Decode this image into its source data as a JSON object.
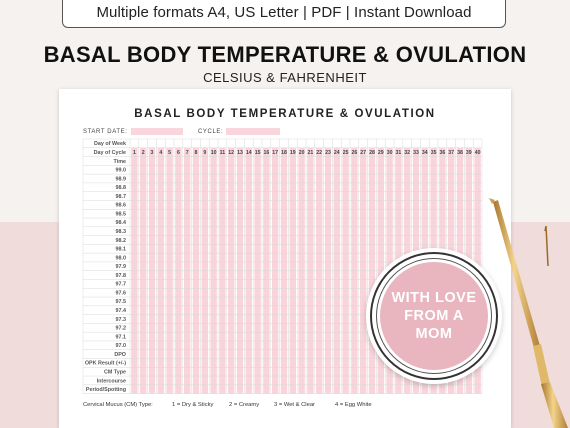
{
  "banner": {
    "formats_text": "Multiple formats A4, US Letter | PDF | Instant Download"
  },
  "header": {
    "title": "BASAL BODY TEMPERATURE & OVULATION",
    "subtitle": "CELSIUS & FAHRENHEIT"
  },
  "sheet": {
    "title": "BASAL BODY TEMPERATURE & OVULATION",
    "start_date_label": "START DATE:",
    "cycle_label": "CYCLE:",
    "header_rows": [
      "Day of Week",
      "Day of Cycle",
      "Time"
    ],
    "days": [
      1,
      2,
      3,
      4,
      5,
      6,
      7,
      8,
      9,
      10,
      11,
      12,
      13,
      14,
      15,
      16,
      17,
      18,
      19,
      20,
      21,
      22,
      23,
      24,
      25,
      26,
      27,
      28,
      29,
      30,
      31,
      32,
      33,
      34,
      35,
      36,
      37,
      38,
      39,
      40
    ],
    "temperatures": [
      "99.0",
      "98.9",
      "98.8",
      "98.7",
      "98.6",
      "98.5",
      "98.4",
      "98.3",
      "98.2",
      "98.1",
      "98.0",
      "97.9",
      "97.8",
      "97.7",
      "97.6",
      "97.5",
      "97.4",
      "97.3",
      "97.2",
      "97.1",
      "97.0"
    ],
    "footer_rows": [
      "DPO",
      "OPK Result (+/-)",
      "CM Type",
      "Intercourse",
      "Period/Spotting"
    ],
    "cm_legend": {
      "title": "Cervical Mucus (CM) Type:",
      "items": [
        "1 = Dry & Sticky",
        "2 = Creamy",
        "3 = Wet & Clear",
        "4 = Egg White"
      ]
    }
  },
  "badge": {
    "line1": "WITH LOVE",
    "line2": "FROM A",
    "line3": "MOM"
  },
  "colors": {
    "pink_column": "#f9d4db",
    "badge_pink": "#e9b6c0",
    "background_lower": "#f1dcdc"
  }
}
